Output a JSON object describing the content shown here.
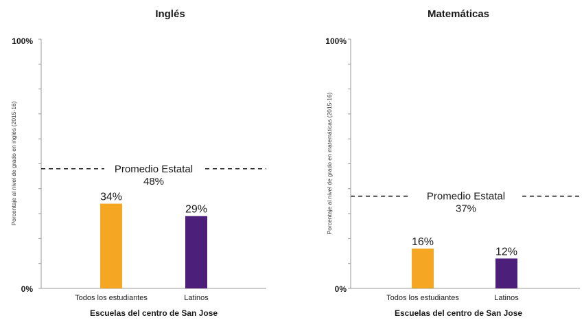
{
  "chart_data": [
    {
      "type": "bar",
      "title": "Inglés",
      "ylabel": "Porcentaje al nivel de grado en inglés (2015-16)",
      "xlabel": "Escuelas del centro de San Jose",
      "ylim": [
        0,
        100
      ],
      "ytick_labels": [
        "0%",
        "100%"
      ],
      "categories": [
        "Todos los estudiantes",
        "Latinos"
      ],
      "values": [
        34,
        29
      ],
      "value_labels": [
        "34%",
        "29%"
      ],
      "colors": [
        "#F5A623",
        "#4B1F7A"
      ],
      "reference_line": {
        "label": "Promedio Estatal",
        "value": 48,
        "value_label": "48%"
      }
    },
    {
      "type": "bar",
      "title": "Matemáticas",
      "ylabel": "Porcentaje al nivel de grado en matemáticas (2015-16)",
      "xlabel": "Escuelas del centro de San Jose",
      "ylim": [
        0,
        100
      ],
      "ytick_labels": [
        "0%",
        "100%"
      ],
      "categories": [
        "Todos los estudiantes",
        "Latinos"
      ],
      "values": [
        16,
        12
      ],
      "value_labels": [
        "16%",
        "12%"
      ],
      "colors": [
        "#F5A623",
        "#4B1F7A"
      ],
      "reference_line": {
        "label": "Promedio Estatal",
        "value": 37,
        "value_label": "37%"
      }
    }
  ]
}
